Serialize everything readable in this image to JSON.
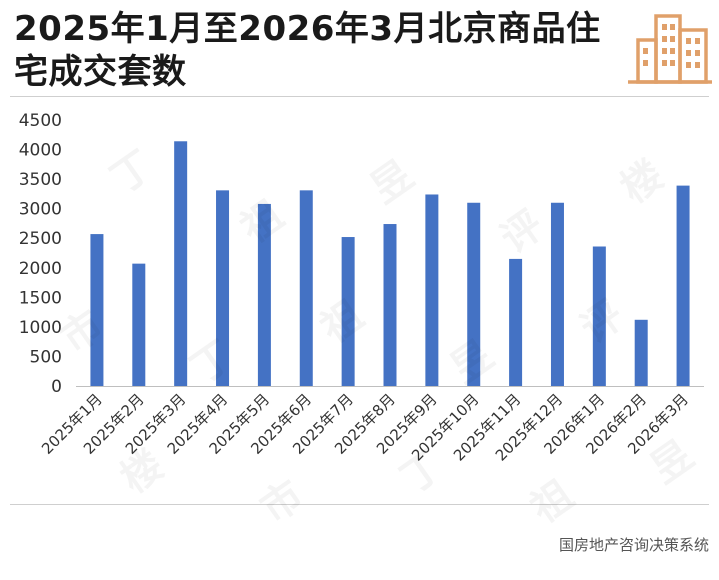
{
  "title": "2025年1月至2026年3月北京商品住宅成交套数",
  "source": "国房地产咨询决策系统",
  "watermark_chars": [
    "丁",
    "祖",
    "昱",
    "评",
    "楼",
    "市"
  ],
  "colors": {
    "bar": "#4472C4",
    "logo": "#E0A06A"
  },
  "chart_data": {
    "type": "bar",
    "categories": [
      "2025年1月",
      "2025年2月",
      "2025年3月",
      "2025年4月",
      "2025年5月",
      "2025年6月",
      "2025年7月",
      "2025年8月",
      "2025年9月",
      "2025年10月",
      "2025年11月",
      "2025年12月",
      "2026年1月",
      "2026年2月",
      "2026年3月"
    ],
    "values": [
      2570,
      2070,
      4140,
      3310,
      3080,
      3310,
      2520,
      2740,
      3240,
      3100,
      2150,
      3100,
      2360,
      1120,
      3390
    ],
    "ylim": [
      0,
      4500
    ],
    "yticks": [
      0,
      500,
      1000,
      1500,
      2000,
      2500,
      3000,
      3500,
      4000,
      4500
    ],
    "grid": false,
    "legend": "none"
  }
}
